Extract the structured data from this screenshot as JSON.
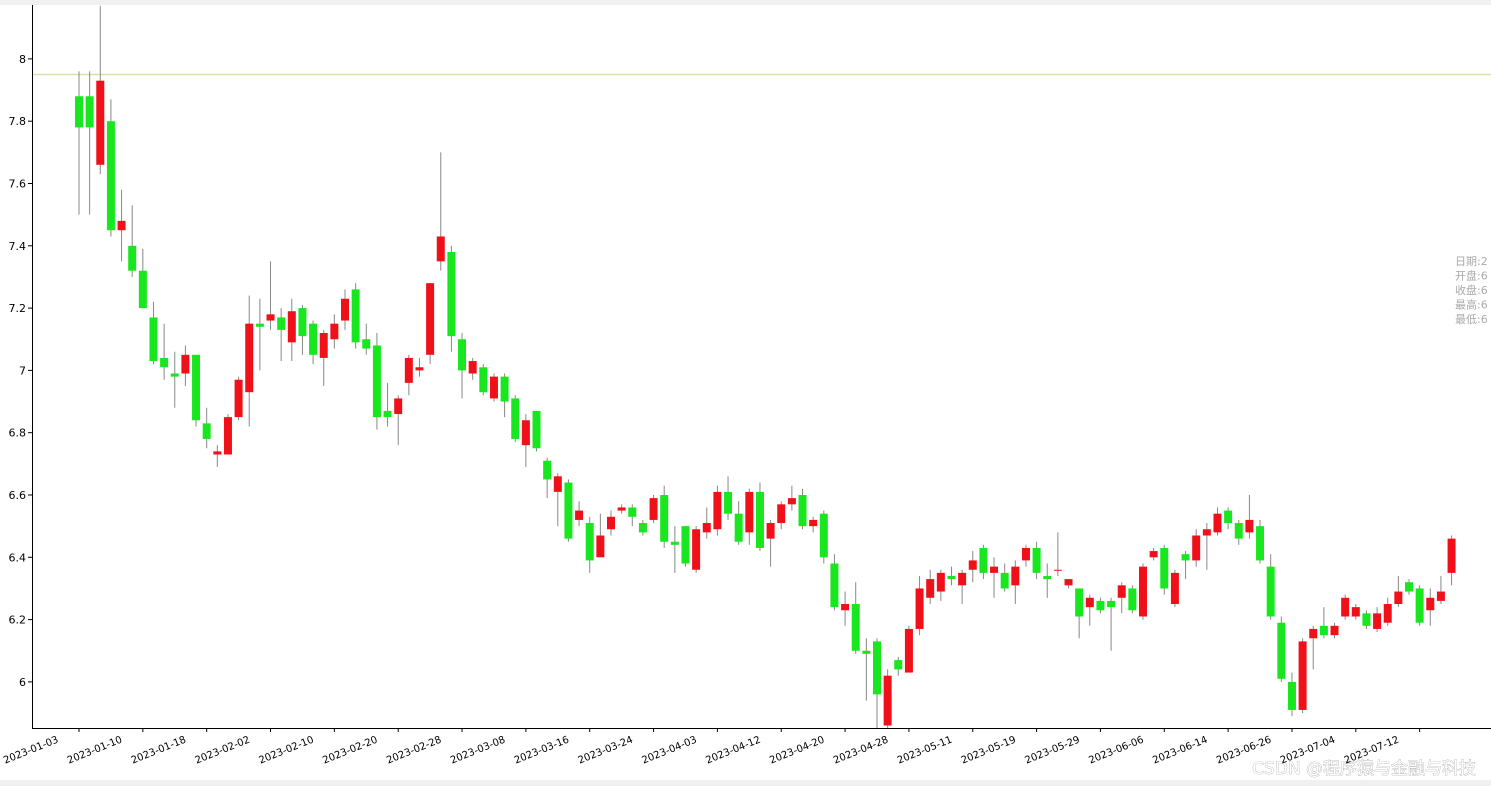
{
  "chart_data": {
    "type": "candlestick",
    "categories": [
      "2023-01-03",
      null,
      null,
      null,
      null,
      null,
      "2023-01-10",
      null,
      null,
      null,
      null,
      null,
      "2023-01-18",
      null,
      null,
      null,
      null,
      null,
      "2023-02-02",
      null,
      null,
      null,
      null,
      null,
      "2023-02-10",
      null,
      null,
      null,
      null,
      null,
      "2023-02-20",
      null,
      null,
      null,
      null,
      null,
      "2023-02-28",
      null,
      null,
      null,
      null,
      null,
      "2023-03-08",
      null,
      null,
      null,
      null,
      null,
      "2023-03-16",
      null,
      null,
      null,
      null,
      null,
      "2023-03-24",
      null,
      null,
      null,
      null,
      null,
      "2023-04-03",
      null,
      null,
      null,
      null,
      null,
      "2023-04-12",
      null,
      null,
      null,
      null,
      null,
      "2023-04-20",
      null,
      null,
      null,
      null,
      null,
      "2023-04-28",
      null,
      null,
      null,
      null,
      null,
      "2023-05-11",
      null,
      null,
      null,
      null,
      null,
      "2023-05-19",
      null,
      null,
      null,
      null,
      null,
      "2023-05-29",
      null,
      null,
      null,
      null,
      null,
      "2023-06-06",
      null,
      null,
      null,
      null,
      null,
      "2023-06-14",
      null,
      null,
      null,
      null,
      null,
      "2023-06-26",
      null,
      null,
      null,
      null,
      null,
      "2023-07-04",
      null,
      null,
      null,
      null,
      null,
      "2023-07-12",
      null,
      null,
      null
    ],
    "open": [
      7.88,
      7.88,
      7.66,
      7.8,
      7.45,
      7.4,
      7.32,
      7.17,
      7.04,
      6.99,
      6.99,
      7.05,
      6.83,
      6.73,
      6.73,
      6.85,
      6.93,
      7.15,
      7.16,
      7.17,
      7.09,
      7.2,
      7.15,
      7.04,
      7.1,
      7.16,
      7.26,
      7.1,
      7.08,
      6.87,
      6.86,
      6.96,
      7.0,
      7.05,
      7.35,
      7.38,
      7.1,
      6.99,
      7.01,
      6.91,
      6.98,
      6.91,
      6.76,
      6.87,
      6.71,
      6.61,
      6.64,
      6.52,
      6.51,
      6.4,
      6.49,
      6.55,
      6.56,
      6.51,
      6.52,
      6.6,
      6.45,
      6.5,
      6.36,
      6.48,
      6.49,
      6.61,
      6.54,
      6.48,
      6.61,
      6.46,
      6.51,
      6.57,
      6.6,
      6.5,
      6.54,
      6.38,
      6.23,
      6.25,
      6.1,
      6.13,
      5.86,
      6.07,
      6.03,
      6.17,
      6.27,
      6.29,
      6.34,
      6.31,
      6.36,
      6.43,
      6.35,
      6.35,
      6.31,
      6.39,
      6.43,
      6.34,
      6.36,
      6.31,
      6.3,
      6.24,
      6.26,
      6.26,
      6.27,
      6.3,
      6.21,
      6.4,
      6.43,
      6.25,
      6.41,
      6.39,
      6.47,
      6.48,
      6.55,
      6.51,
      6.48,
      6.5,
      6.37,
      6.19,
      6.0,
      5.91,
      6.14,
      6.18,
      6.15,
      6.21,
      6.21,
      6.22,
      6.17,
      6.19,
      6.25,
      6.32,
      6.3,
      6.23,
      6.26,
      6.35
    ],
    "high": [
      7.96,
      7.96,
      8.17,
      7.87,
      7.58,
      7.53,
      7.39,
      7.22,
      7.15,
      7.06,
      7.08,
      7.05,
      6.88,
      6.76,
      6.86,
      6.98,
      7.24,
      7.23,
      7.35,
      7.2,
      7.23,
      7.21,
      7.16,
      7.13,
      7.18,
      7.26,
      7.28,
      7.15,
      7.12,
      6.96,
      6.92,
      7.05,
      7.04,
      7.28,
      7.7,
      7.4,
      7.12,
      7.04,
      7.02,
      6.99,
      6.99,
      6.92,
      6.86,
      6.87,
      6.72,
      6.67,
      6.65,
      6.58,
      6.53,
      6.54,
      6.55,
      6.57,
      6.57,
      6.52,
      6.6,
      6.63,
      6.5,
      6.5,
      6.5,
      6.56,
      6.63,
      6.66,
      6.58,
      6.62,
      6.64,
      6.52,
      6.58,
      6.63,
      6.62,
      6.53,
      6.55,
      6.41,
      6.29,
      6.32,
      6.14,
      6.14,
      6.04,
      6.08,
      6.18,
      6.34,
      6.36,
      6.36,
      6.37,
      6.36,
      6.42,
      6.44,
      6.4,
      6.38,
      6.39,
      6.44,
      6.45,
      6.38,
      6.48,
      6.33,
      6.3,
      6.28,
      6.27,
      6.27,
      6.32,
      6.31,
      6.38,
      6.43,
      6.44,
      6.36,
      6.42,
      6.49,
      6.51,
      6.56,
      6.56,
      6.52,
      6.6,
      6.52,
      6.41,
      6.21,
      6.03,
      6.14,
      6.18,
      6.24,
      6.19,
      6.28,
      6.25,
      6.23,
      6.24,
      6.27,
      6.34,
      6.33,
      6.31,
      6.3,
      6.34,
      6.47
    ],
    "low": [
      7.5,
      7.5,
      7.63,
      7.43,
      7.35,
      7.3,
      7.2,
      7.02,
      6.97,
      6.88,
      6.95,
      6.82,
      6.75,
      6.69,
      6.73,
      6.84,
      6.82,
      7.0,
      7.13,
      7.03,
      7.03,
      7.05,
      7.02,
      6.95,
      7.07,
      7.13,
      7.07,
      7.05,
      6.81,
      6.82,
      6.76,
      6.92,
      6.98,
      7.02,
      7.32,
      7.06,
      6.91,
      6.97,
      6.92,
      6.9,
      6.85,
      6.77,
      6.69,
      6.74,
      6.59,
      6.5,
      6.45,
      6.5,
      6.35,
      6.4,
      6.47,
      6.54,
      6.5,
      6.47,
      6.51,
      6.43,
      6.35,
      6.37,
      6.35,
      6.46,
      6.47,
      6.52,
      6.44,
      6.44,
      6.42,
      6.37,
      6.49,
      6.55,
      6.49,
      6.48,
      6.38,
      6.23,
      6.18,
      6.09,
      5.94,
      5.85,
      5.85,
      6.02,
      6.03,
      6.15,
      6.25,
      6.26,
      6.31,
      6.25,
      6.32,
      6.33,
      6.27,
      6.29,
      6.25,
      6.37,
      6.33,
      6.27,
      6.34,
      6.3,
      6.14,
      6.18,
      6.22,
      6.1,
      6.22,
      6.22,
      6.2,
      6.39,
      6.28,
      6.24,
      6.33,
      6.37,
      6.36,
      6.47,
      6.49,
      6.44,
      6.46,
      6.38,
      6.2,
      6.0,
      5.89,
      5.9,
      6.04,
      6.14,
      6.14,
      6.2,
      6.2,
      6.17,
      6.16,
      6.18,
      6.24,
      6.28,
      6.18,
      6.18,
      6.25,
      6.31
    ],
    "close": [
      7.78,
      7.78,
      7.93,
      7.45,
      7.48,
      7.32,
      7.2,
      7.03,
      7.01,
      6.98,
      7.05,
      6.84,
      6.78,
      6.74,
      6.85,
      6.97,
      7.15,
      7.14,
      7.18,
      7.13,
      7.19,
      7.11,
      7.05,
      7.12,
      7.15,
      7.23,
      7.09,
      7.07,
      6.85,
      6.85,
      6.91,
      7.04,
      7.01,
      7.28,
      7.43,
      7.11,
      7.0,
      7.03,
      6.93,
      6.98,
      6.9,
      6.78,
      6.84,
      6.75,
      6.65,
      6.66,
      6.46,
      6.55,
      6.39,
      6.47,
      6.53,
      6.56,
      6.53,
      6.48,
      6.59,
      6.45,
      6.44,
      6.38,
      6.49,
      6.51,
      6.61,
      6.54,
      6.45,
      6.61,
      6.43,
      6.51,
      6.57,
      6.59,
      6.5,
      6.52,
      6.4,
      6.24,
      6.25,
      6.1,
      6.09,
      5.96,
      6.02,
      6.04,
      6.17,
      6.3,
      6.33,
      6.35,
      6.33,
      6.35,
      6.39,
      6.35,
      6.37,
      6.3,
      6.37,
      6.43,
      6.35,
      6.33,
      6.36,
      6.33,
      6.21,
      6.27,
      6.23,
      6.24,
      6.31,
      6.23,
      6.37,
      6.42,
      6.3,
      6.35,
      6.39,
      6.47,
      6.49,
      6.54,
      6.51,
      6.46,
      6.52,
      6.39,
      6.21,
      6.01,
      5.91,
      6.13,
      6.17,
      6.15,
      6.18,
      6.27,
      6.24,
      6.18,
      6.22,
      6.25,
      6.29,
      6.29,
      6.19,
      6.27,
      6.29,
      6.46
    ],
    "up_color": "#f0101a",
    "down_color": "#18e61e",
    "wick_color": "#888888",
    "ylim": [
      5.852,
      8.173
    ],
    "yticks": [
      6,
      6.2,
      6.4,
      6.6,
      6.8,
      7,
      7.2,
      7.4,
      7.6,
      7.8,
      8
    ],
    "reference_line": {
      "value": 7.95,
      "color": "#d8e0a8"
    },
    "tooltip": [
      "日期:2",
      "开盘:6",
      "收盘:6",
      "最高:6",
      "最低:6"
    ]
  },
  "watermark": "CSDN @程序猿与金融与科技"
}
